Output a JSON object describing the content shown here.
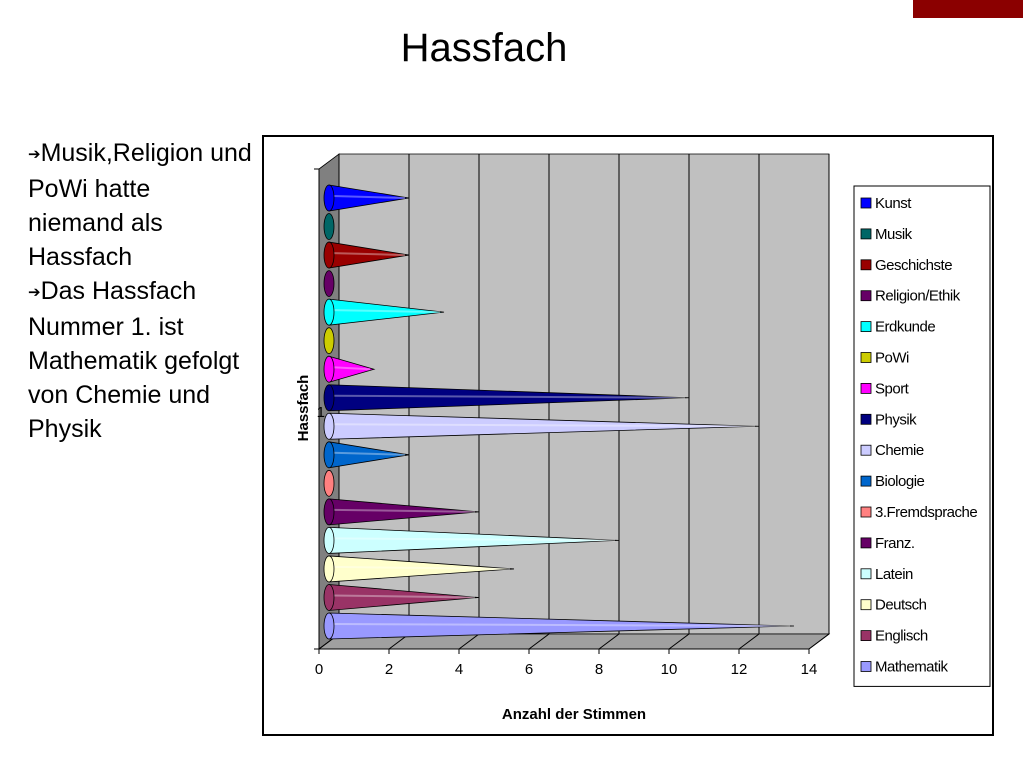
{
  "title": "Hassfach",
  "bullets": [
    {
      "arrow": "➔",
      "text": "Musik,Religion und PoWi hatte niemand als Hassfach"
    },
    {
      "arrow": "➔",
      "text": "Das Hassfach Nummer 1. ist Mathematik gefolgt von Chemie und Physik"
    }
  ],
  "colors": {
    "accent": "#8b0000",
    "plot_wall": "#c0c0c0"
  },
  "chart_data": {
    "type": "bar",
    "orientation": "horizontal",
    "style": "3d-cone",
    "title": "",
    "xlabel": "Anzahl der Stimmen",
    "ylabel": "Hassfach",
    "category_label": "1",
    "xlim": [
      0,
      14
    ],
    "xticks": [
      0,
      2,
      4,
      6,
      8,
      10,
      12,
      14
    ],
    "grid": true,
    "legend_position": "right",
    "series": [
      {
        "name": "Kunst",
        "value": 2,
        "color": "#0000ff"
      },
      {
        "name": "Musik",
        "value": 0,
        "color": "#006666"
      },
      {
        "name": "Geschichste",
        "value": 2,
        "color": "#990000"
      },
      {
        "name": "Religion/Ethik",
        "value": 0,
        "color": "#660066"
      },
      {
        "name": "Erdkunde",
        "value": 3,
        "color": "#00ffff"
      },
      {
        "name": "PoWi",
        "value": 0,
        "color": "#cccc00"
      },
      {
        "name": "Sport",
        "value": 1,
        "color": "#ff00ff"
      },
      {
        "name": "Physik",
        "value": 10,
        "color": "#000080"
      },
      {
        "name": "Chemie",
        "value": 12,
        "color": "#ccccff"
      },
      {
        "name": "Biologie",
        "value": 2,
        "color": "#0066cc"
      },
      {
        "name": "3.Fremdsprache",
        "value": 0,
        "color": "#ff8080"
      },
      {
        "name": "Franz.",
        "value": 4,
        "color": "#660066"
      },
      {
        "name": "Latein",
        "value": 8,
        "color": "#ccffff"
      },
      {
        "name": "Deutsch",
        "value": 5,
        "color": "#ffffcc"
      },
      {
        "name": "Englisch",
        "value": 4,
        "color": "#993366"
      },
      {
        "name": "Mathematik",
        "value": 13,
        "color": "#9999ff"
      }
    ]
  }
}
